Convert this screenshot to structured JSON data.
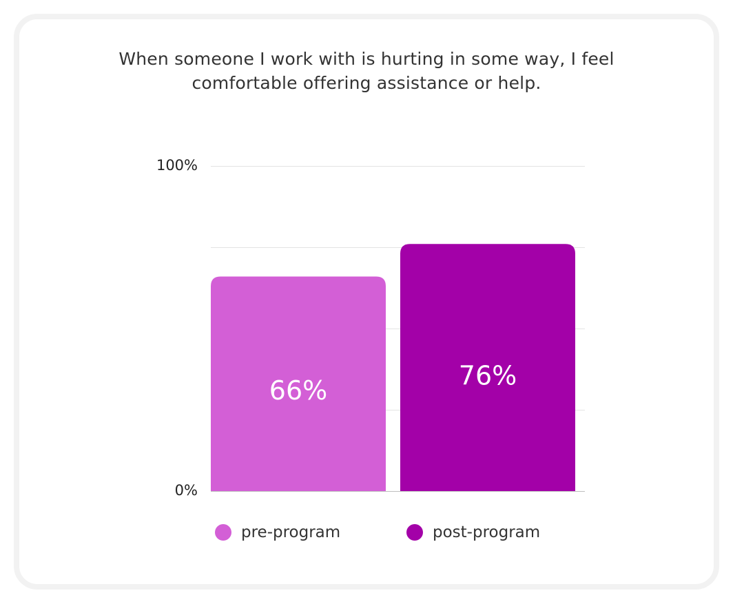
{
  "chart_data": {
    "type": "bar",
    "title": "When someone I work with is hurting in some way, I feel comfortable offering assistance or help.",
    "categories": [
      "pre-program",
      "post-program"
    ],
    "values": [
      66,
      76
    ],
    "value_labels": [
      "66%",
      "76%"
    ],
    "colors": [
      "#d35fd6",
      "#a301a8"
    ],
    "ylim": [
      0,
      100
    ],
    "y_ticks": [
      {
        "value": 100,
        "label": "100%"
      },
      {
        "value": 0,
        "label": "0%"
      }
    ],
    "gridlines": [
      0,
      25,
      50,
      75,
      100
    ],
    "grid": true,
    "legend_position": "bottom",
    "legend": [
      {
        "label": "pre-program",
        "color": "#d35fd6"
      },
      {
        "label": "post-program",
        "color": "#a301a8"
      }
    ]
  }
}
